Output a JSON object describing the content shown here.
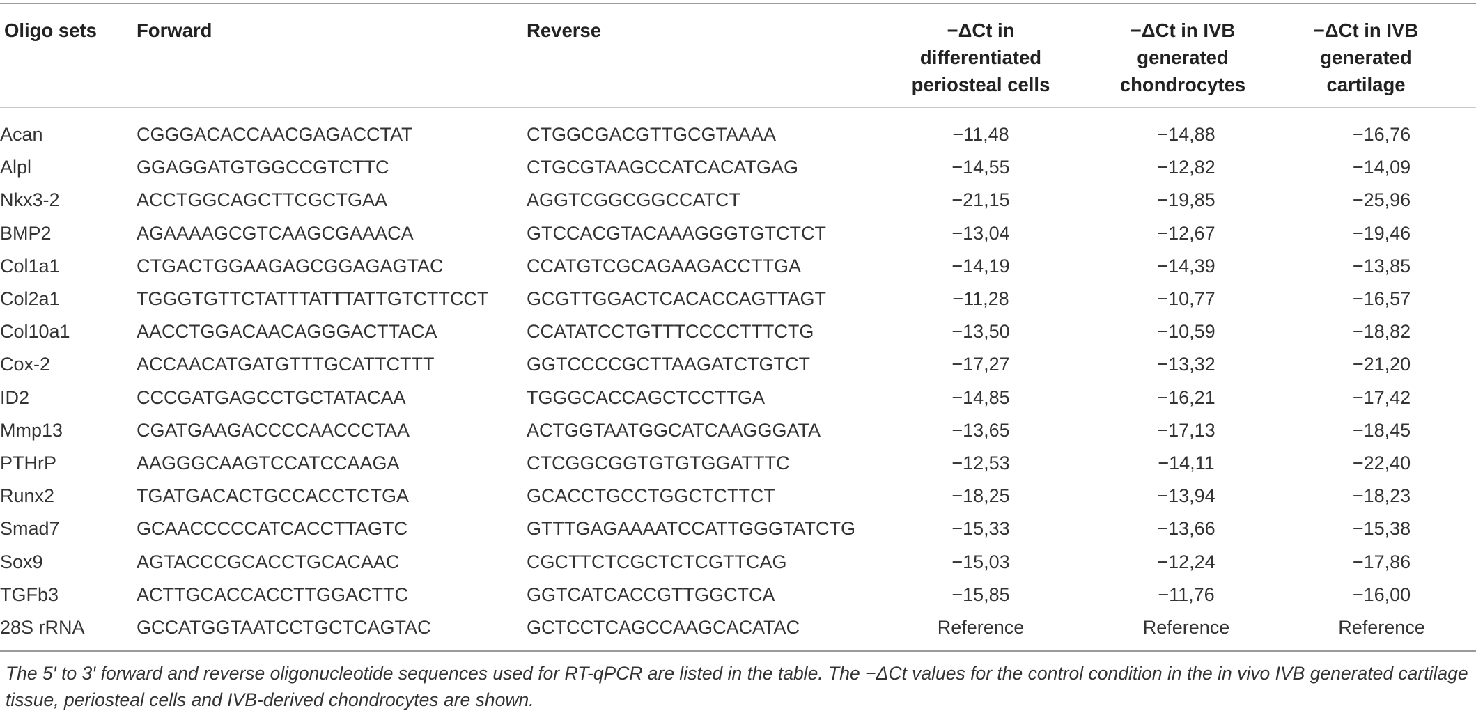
{
  "table": {
    "headers": {
      "oligo": "Oligo sets",
      "forward": "Forward",
      "reverse": "Reverse",
      "periosteal": [
        "−ΔCt in",
        "differentiated",
        "periosteal cells"
      ],
      "chondrocytes": [
        "−ΔCt in IVB",
        "generated",
        "chondrocytes"
      ],
      "cartilage": [
        "−ΔCt in IVB",
        "generated",
        "cartilage"
      ]
    },
    "rows": [
      {
        "gene": "Acan",
        "forward": "CGGGACACCAACGAGACCTAT",
        "reverse": "CTGGCGACGTTGCGTAAAA",
        "periosteal": "−11,48",
        "chondrocytes": "−14,88",
        "cartilage": "−16,76"
      },
      {
        "gene": "Alpl",
        "forward": "GGAGGATGTGGCCGTCTTC",
        "reverse": "CTGCGTAAGCCATCACATGAG",
        "periosteal": "−14,55",
        "chondrocytes": "−12,82",
        "cartilage": "−14,09"
      },
      {
        "gene": "Nkx3-2",
        "forward": "ACCTGGCAGCTTCGCTGAA",
        "reverse": "AGGTCGGCGGCCATCT",
        "periosteal": "−21,15",
        "chondrocytes": "−19,85",
        "cartilage": "−25,96"
      },
      {
        "gene": "BMP2",
        "forward": "AGAAAAGCGTCAAGCGAAACA",
        "reverse": "GTCCACGTACAAAGGGTGTCTCT",
        "periosteal": "−13,04",
        "chondrocytes": "−12,67",
        "cartilage": "−19,46"
      },
      {
        "gene": "Col1a1",
        "forward": "CTGACTGGAAGAGCGGAGAGTAC",
        "reverse": "CCATGTCGCAGAAGACCTTGA",
        "periosteal": "−14,19",
        "chondrocytes": "−14,39",
        "cartilage": "−13,85"
      },
      {
        "gene": "Col2a1",
        "forward": "TGGGTGTTCTATTTATTTATTGTCTTCCT",
        "reverse": "GCGTTGGACTCACACCAGTTAGT",
        "periosteal": "−11,28",
        "chondrocytes": "−10,77",
        "cartilage": "−16,57"
      },
      {
        "gene": "Col10a1",
        "forward": "AACCTGGACAACAGGGACTTACA",
        "reverse": "CCATATCCTGTTTCCCCTTTCTG",
        "periosteal": "−13,50",
        "chondrocytes": "−10,59",
        "cartilage": "−18,82"
      },
      {
        "gene": "Cox-2",
        "forward": "ACCAACATGATGTTTGCATTCTTT",
        "reverse": "GGTCCCCGCTTAAGATCTGTCT",
        "periosteal": "−17,27",
        "chondrocytes": "−13,32",
        "cartilage": "−21,20"
      },
      {
        "gene": "ID2",
        "forward": "CCCGATGAGCCTGCTATACAA",
        "reverse": "TGGGCACCAGCTCCTTGA",
        "periosteal": "−14,85",
        "chondrocytes": "−16,21",
        "cartilage": "−17,42"
      },
      {
        "gene": "Mmp13",
        "forward": "CGATGAAGACCCCAACCCTAA",
        "reverse": "ACTGGTAATGGCATCAAGGGATA",
        "periosteal": "−13,65",
        "chondrocytes": "−17,13",
        "cartilage": "−18,45"
      },
      {
        "gene": "PTHrP",
        "forward": "AAGGGCAAGTCCATCCAAGA",
        "reverse": "CTCGGCGGTGTGTGGATTTC",
        "periosteal": "−12,53",
        "chondrocytes": "−14,11",
        "cartilage": "−22,40"
      },
      {
        "gene": "Runx2",
        "forward": "TGATGACACTGCCACCTCTGA",
        "reverse": "GCACCTGCCTGGCTCTTCT",
        "periosteal": "−18,25",
        "chondrocytes": "−13,94",
        "cartilage": "−18,23"
      },
      {
        "gene": "Smad7",
        "forward": "GCAACCCCCATCACCTTAGTC",
        "reverse": "GTTTGAGAAAATCCATTGGGTATCTG",
        "periosteal": "−15,33",
        "chondrocytes": "−13,66",
        "cartilage": "−15,38"
      },
      {
        "gene": "Sox9",
        "forward": "AGTACCCGCACCTGCACAAC",
        "reverse": "CGCTTCTCGCTCTCGTTCAG",
        "periosteal": "−15,03",
        "chondrocytes": "−12,24",
        "cartilage": "−17,86"
      },
      {
        "gene": "TGFb3",
        "forward": "ACTTGCACCACCTTGGACTTC",
        "reverse": "GGTCATCACCGTTGGCTCA",
        "periosteal": "−15,85",
        "chondrocytes": "−11,76",
        "cartilage": "−16,00"
      },
      {
        "gene": "28S rRNA",
        "forward": "GCCATGGTAATCCTGCTCAGTAC",
        "reverse": "GCTCCTCAGCCAAGCACATAC",
        "periosteal": "Reference",
        "chondrocytes": "Reference",
        "cartilage": "Reference"
      }
    ]
  },
  "caption": "The 5′ to 3′ forward and reverse oligonucleotide sequences used for RT-qPCR are listed in the table. The −ΔCt values for the control condition in the in vivo IVB generated cartilage tissue, periosteal cells and IVB-derived chondrocytes are shown."
}
